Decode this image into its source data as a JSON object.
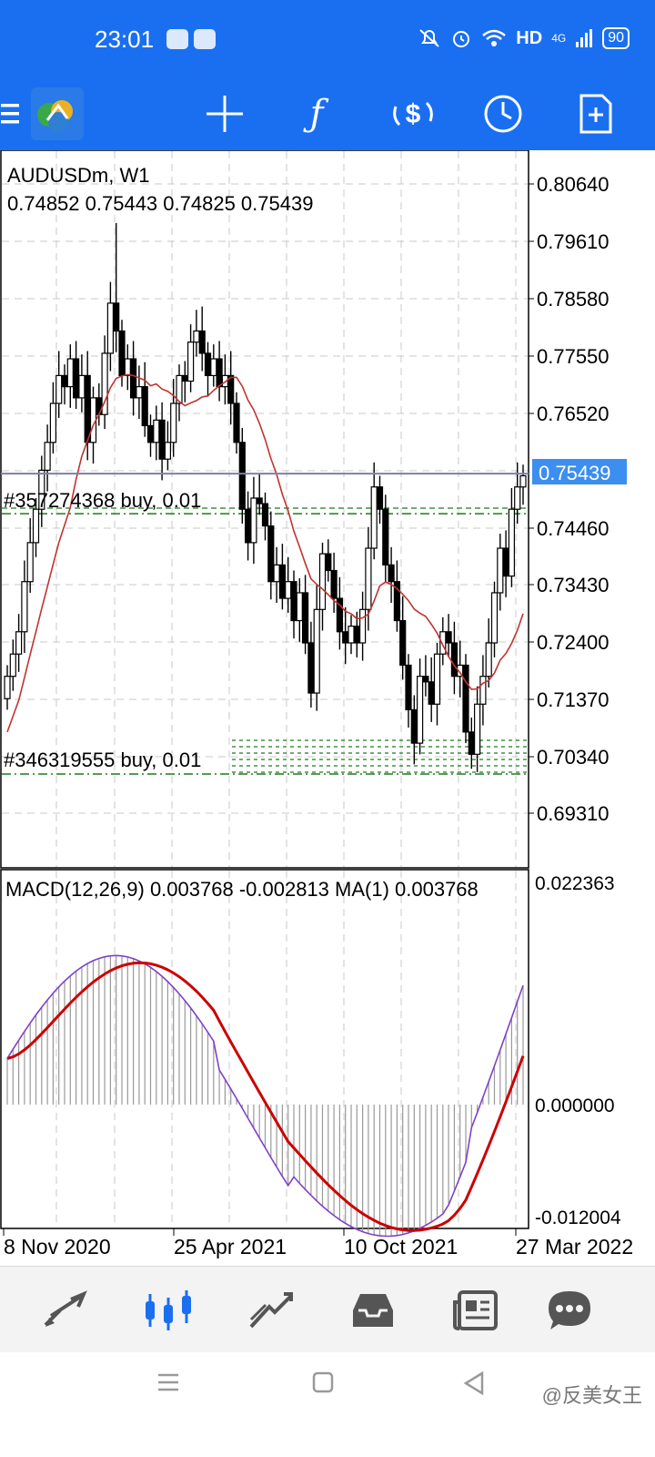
{
  "status_bar": {
    "time": "23:01",
    "network": "HD",
    "signal_label": "4G",
    "battery": "90"
  },
  "toolbar": {
    "icons": [
      "menu-icon",
      "app-logo-icon",
      "crosshair-icon",
      "indicators-icon",
      "trade-icon",
      "timeframe-icon",
      "new-order-icon"
    ]
  },
  "chart": {
    "symbol_label": "AUDUSDm, W1",
    "ohlc": "0.74852 0.75443 0.74825 0.75439",
    "current_price": "0.75439",
    "price_axis": [
      "0.80640",
      "0.79610",
      "0.78580",
      "0.77550",
      "0.76520",
      "0.75439",
      "0.74460",
      "0.73430",
      "0.72400",
      "0.71370",
      "0.70340",
      "0.69310"
    ],
    "orders": {
      "order1": "#357274368 buy, 0.01",
      "order2": "#346319555 buy, 0.01"
    },
    "macd_label": "MACD(12,26,9) 0.003768 -0.002813 MA(1) 0.003768",
    "macd_axis": [
      "0.022363",
      "0.000000",
      "-0.012004"
    ],
    "time_axis": [
      "8 Nov 2020",
      "25 Apr 2021",
      "10 Oct 2021",
      "27 Mar 2022"
    ],
    "colors": {
      "bullish": "#ffffff",
      "bearish": "#000000",
      "ma_line": "#c0342f",
      "order_line": "#1f7a1f",
      "macd_line": "#8040c8",
      "signal_line": "#cc0000",
      "price_badge": "#3c8ef0"
    }
  },
  "chart_data": {
    "type": "candlestick",
    "timeframe": "W1",
    "last_close": 0.75439,
    "ylim": [
      0.688,
      0.811
    ]
  },
  "bottom_nav": {
    "items": [
      "quotes-icon",
      "chart-icon",
      "trade-icon",
      "history-icon",
      "news-icon",
      "messages-icon"
    ]
  },
  "system_nav": {
    "watermark": "@反美女王"
  }
}
